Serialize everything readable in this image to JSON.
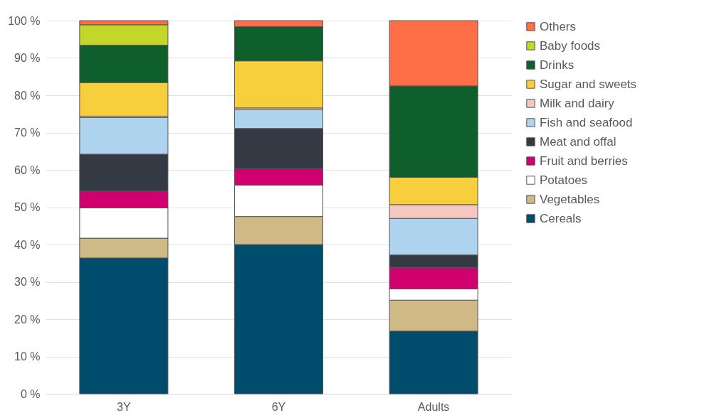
{
  "chart_data": {
    "type": "bar",
    "stacked": true,
    "categories": [
      "3Y",
      "6Y",
      "Adults"
    ],
    "series": [
      {
        "name": "Cereals",
        "color": "#004c6d",
        "values": [
          36.4,
          40.0,
          16.8
        ]
      },
      {
        "name": "Vegetables",
        "color": "#cfb987",
        "values": [
          5.3,
          7.5,
          8.3
        ]
      },
      {
        "name": "Potatoes",
        "color": "#ffffff",
        "values": [
          8.1,
          8.4,
          3.0
        ]
      },
      {
        "name": "Fruit and berries",
        "color": "#d0006f",
        "values": [
          4.5,
          4.4,
          5.7
        ]
      },
      {
        "name": "Meat and offal",
        "color": "#343a44",
        "values": [
          9.9,
          10.8,
          3.4
        ]
      },
      {
        "name": "Fish and seafood",
        "color": "#aed3ee",
        "values": [
          9.8,
          5.0,
          9.8
        ]
      },
      {
        "name": "Milk and dairy",
        "color": "#f4c7c3",
        "values": [
          0.4,
          0.5,
          3.7
        ]
      },
      {
        "name": "Sugar and sweets",
        "color": "#f7ce3c",
        "values": [
          9.0,
          12.6,
          7.3
        ]
      },
      {
        "name": "Drinks",
        "color": "#0f5f2d",
        "values": [
          10.0,
          9.2,
          24.5
        ]
      },
      {
        "name": "Baby foods",
        "color": "#c4d62a",
        "values": [
          5.5,
          null,
          null
        ]
      },
      {
        "name": "Others",
        "color": "#ff6f47",
        "values": [
          1.1,
          1.6,
          17.5
        ]
      }
    ],
    "ylim": [
      0,
      100
    ],
    "yticks": [
      {
        "value": 0,
        "label": "0 %"
      },
      {
        "value": 10,
        "label": "10 %"
      },
      {
        "value": 20,
        "label": "20 %"
      },
      {
        "value": 30,
        "label": "30 %"
      },
      {
        "value": 40,
        "label": "40 %"
      },
      {
        "value": 50,
        "label": "50 %"
      },
      {
        "value": 60,
        "label": "60 %"
      },
      {
        "value": 70,
        "label": "70 %"
      },
      {
        "value": 80,
        "label": "80 %"
      },
      {
        "value": 90,
        "label": "90 %"
      },
      {
        "value": 100,
        "label": "100 %"
      }
    ],
    "grid": "y",
    "legend": "right"
  }
}
